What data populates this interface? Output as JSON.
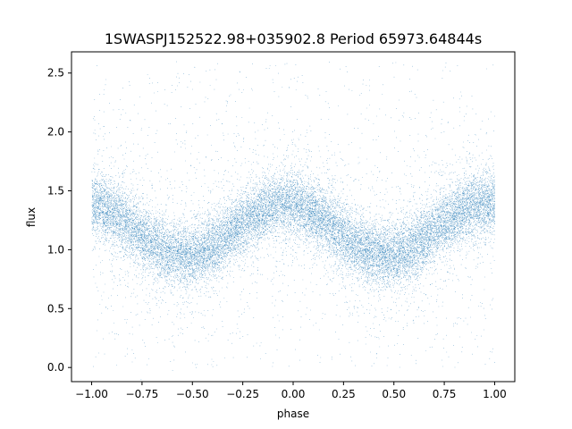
{
  "chart_data": {
    "type": "scatter",
    "title": "1SWASPJ152522.98+035902.8 Period 65973.64844s",
    "xlabel": "phase",
    "ylabel": "flux",
    "xlim": [
      -1.1,
      1.1
    ],
    "ylim": [
      -0.12,
      2.68
    ],
    "xticks": [
      -1.0,
      -0.75,
      -0.5,
      -0.25,
      0.0,
      0.25,
      0.5,
      0.75,
      1.0
    ],
    "xtick_labels": [
      "−1.00",
      "−0.75",
      "−0.50",
      "−0.25",
      "0.00",
      "0.25",
      "0.50",
      "0.75",
      "1.00"
    ],
    "yticks": [
      0.0,
      0.5,
      1.0,
      1.5,
      2.0,
      2.5
    ],
    "ytick_labels": [
      "0.0",
      "0.5",
      "1.0",
      "1.5",
      "2.0",
      "2.5"
    ],
    "grid": false,
    "legend": "none",
    "color": "#1f77b4",
    "series": [
      {
        "x_range": [
          -1.0,
          1.0
        ],
        "point_count": 22000,
        "model": {
          "mean_flux": 1.17,
          "amplitude": 0.22,
          "peak_phases": [
            -1.0,
            -0.05,
            1.0
          ],
          "trough_phases": [
            -0.52,
            0.45
          ],
          "scatter_sd": 0.13,
          "outlier_range": [
            0.0,
            2.6
          ]
        }
      }
    ]
  }
}
